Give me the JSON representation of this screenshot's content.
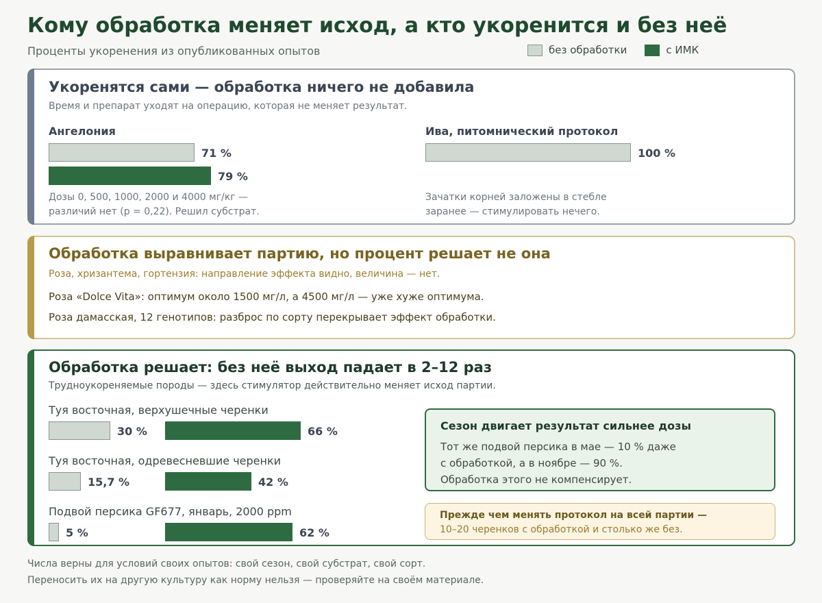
{
  "header": {
    "title": "Кому обработка меняет исход, а кто укоренится и без неё",
    "subtitle": "Проценты укоренения из опубликованных опытов"
  },
  "legend": {
    "base": "без обработки",
    "treated": "с ИМК"
  },
  "colors": {
    "base_fill": "#cfd8d1",
    "treated_fill": "#2e6b41",
    "grey_accent": "#6e7c90",
    "gold_accent": "#b89b4a",
    "green_accent": "#2e6b41"
  },
  "section1": {
    "heading": "Укоренятся сами — обработка ничего не добавила",
    "sub": "Время и препарат уходят на операцию, которая не меняет результат.",
    "left": {
      "name": "Ангелония",
      "base_label": "71 %",
      "treated_label": "79 %",
      "note1": "Дозы 0, 500, 1000, 2000 и 4000 мг/кг —",
      "note2": "различий нет (p = 0,22). Решил субстрат."
    },
    "right": {
      "name": "Ива, питомнический протокол",
      "base_label": "100 %",
      "note1": "Зачатки корней заложены в стебле",
      "note2": "заранее — стимулировать нечего."
    }
  },
  "section2": {
    "heading": "Обработка выравнивает партию, но процент решает не она",
    "sub": "Роза, хризантема, гортензия: направление эффекта видно, величина — нет.",
    "line1": "Роза «Dolce Vita»: оптимум около 1500 мг/л, а 4500 мг/л — уже хуже оптимума.",
    "line2": "Роза дамасская, 12 генотипов: разброс по сорту перекрывает эффект обработки."
  },
  "section3": {
    "heading": "Обработка решает: без неё выход падает в 2–12 раз",
    "sub": "Трудноукореняемые породы — здесь стимулятор действительно меняет исход партии.",
    "rows": [
      {
        "name": "Туя восточная, верхушечные черенки",
        "base_label": "30 %",
        "treated_label": "66 %"
      },
      {
        "name": "Туя восточная, одревесневшие черенки",
        "base_label": "15,7 %",
        "treated_label": "42 %"
      },
      {
        "name": "Подвой персика GF677, январь, 2000 ppm",
        "base_label": "5 %",
        "treated_label": "62 %"
      }
    ],
    "season": {
      "title": "Сезон двигает результат сильнее дозы",
      "line1": "Тот же подвой персика в мае — 10 % даже",
      "line2": "с обработкой, а в ноябре — 90 %.",
      "line3": "Обработка этого не компенсирует."
    },
    "tip": {
      "line1": "Прежде чем менять протокол на всей партии —",
      "line2": "10–20 черенков с обработкой и столько же без."
    }
  },
  "footer": {
    "line1": "Числа верны для условий своих опытов: свой сезон, свой субстрат, свой сорт.",
    "line2": "Переносить их на другую культуру как норму нельзя — проверяйте на своём материале."
  },
  "chart_data": [
    {
      "type": "bar",
      "title": "Укоренятся сами — обработка ничего не добавила",
      "categories": [
        "Ангелония",
        "Ива, питомнический протокол"
      ],
      "series": [
        {
          "name": "без обработки",
          "values": [
            71,
            100
          ]
        },
        {
          "name": "с ИМК",
          "values": [
            79,
            null
          ]
        }
      ],
      "unit": "%",
      "ylim": [
        0,
        100
      ]
    },
    {
      "type": "bar",
      "title": "Обработка решает: без неё выход падает в 2–12 раз",
      "categories": [
        "Туя восточная, верхушечные черенки",
        "Туя восточная, одревесневшие черенки",
        "Подвой персика GF677, январь, 2000 ppm"
      ],
      "series": [
        {
          "name": "без обработки",
          "values": [
            30,
            15.7,
            5
          ]
        },
        {
          "name": "с ИМК",
          "values": [
            66,
            42,
            62
          ]
        }
      ],
      "unit": "%",
      "ylim": [
        0,
        100
      ]
    }
  ]
}
